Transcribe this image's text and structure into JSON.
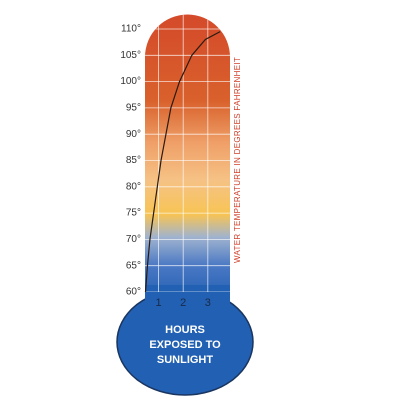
{
  "chart_data": {
    "type": "line",
    "ylabel": "WATER TEMPERATURE IN DEGREES FAHRENHEIT",
    "xlabel": [
      "HOURS",
      "EXPOSED TO",
      "SUNLIGHT"
    ],
    "x": [
      0.47,
      0.55,
      0.65,
      0.8,
      0.95,
      1.1,
      1.3,
      1.5,
      1.85,
      2.35,
      2.9,
      3.5
    ],
    "series": [
      {
        "color": "#2a1a10",
        "values": [
          60,
          65,
          70,
          75,
          80,
          85,
          90,
          95,
          100,
          105,
          108,
          109.5
        ]
      }
    ],
    "xlim": [
      0.45,
      3.9
    ],
    "xticks": [
      1,
      2,
      3
    ],
    "ylim": [
      60,
      110
    ],
    "yticks": [
      {
        "value": 60,
        "label": "60°"
      },
      {
        "value": 65,
        "label": "65°"
      },
      {
        "value": 70,
        "label": "70°"
      },
      {
        "value": 75,
        "label": "75°"
      },
      {
        "value": 80,
        "label": "80°"
      },
      {
        "value": 85,
        "label": "85°"
      },
      {
        "value": 90,
        "label": "90°"
      },
      {
        "value": 95,
        "label": "95°"
      },
      {
        "value": 100,
        "label": "100°"
      },
      {
        "value": 105,
        "label": "105°"
      },
      {
        "value": 110,
        "label": "110°"
      }
    ],
    "grid": true
  }
}
